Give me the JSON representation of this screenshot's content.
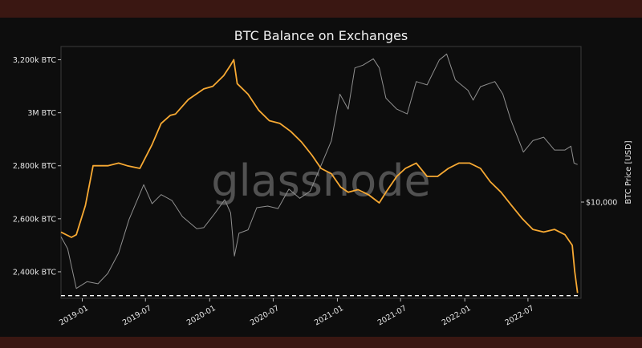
{
  "chart_data": {
    "type": "line",
    "title": "BTC Balance on Exchanges",
    "watermark": "glassnode",
    "ylabel_right": "BTC Price [USD]",
    "y_left": {
      "range": [
        2300000,
        3250000
      ],
      "ticks": [
        {
          "value": 2400000,
          "label": "2,400k BTC"
        },
        {
          "value": 2600000,
          "label": "2,600k BTC"
        },
        {
          "value": 2800000,
          "label": "2,800k BTC"
        },
        {
          "value": 3000000,
          "label": "3M BTC"
        },
        {
          "value": 3200000,
          "label": "3,200k BTC"
        }
      ]
    },
    "y_right": {
      "scale": "log",
      "ticks": [
        {
          "value": 10000,
          "label": "$10,000"
        }
      ]
    },
    "x_axis": {
      "range": [
        "2018-11-01",
        "2022-11-30"
      ],
      "ticks": [
        "2019-01",
        "2019-07",
        "2020-01",
        "2020-07",
        "2021-01",
        "2021-07",
        "2022-01",
        "2022-07"
      ]
    },
    "reference_line": {
      "value": 2310000,
      "style": "dashed",
      "color": "#ffffff"
    },
    "series": [
      {
        "axis": "left",
        "color": "#f7a933",
        "x": [
          "2018-11-01",
          "2018-12-01",
          "2018-12-15",
          "2019-01-10",
          "2019-02-01",
          "2019-03-15",
          "2019-04-15",
          "2019-05-10",
          "2019-06-15",
          "2019-07-20",
          "2019-08-15",
          "2019-09-10",
          "2019-09-25",
          "2019-11-01",
          "2019-12-15",
          "2020-01-10",
          "2020-02-10",
          "2020-03-01",
          "2020-03-10",
          "2020-03-20",
          "2020-04-20",
          "2020-05-20",
          "2020-06-20",
          "2020-07-20",
          "2020-08-20",
          "2020-09-20",
          "2020-10-20",
          "2020-11-15",
          "2020-12-15",
          "2021-01-10",
          "2021-02-01",
          "2021-03-01",
          "2021-04-01",
          "2021-05-01",
          "2021-05-20",
          "2021-06-20",
          "2021-07-15",
          "2021-08-15",
          "2021-09-15",
          "2021-10-15",
          "2021-11-15",
          "2021-12-15",
          "2022-01-15",
          "2022-02-15",
          "2022-03-15",
          "2022-04-15",
          "2022-05-15",
          "2022-06-15",
          "2022-07-15",
          "2022-08-15",
          "2022-09-15",
          "2022-10-15",
          "2022-11-05",
          "2022-11-12",
          "2022-11-20"
        ],
        "values": [
          2550000,
          2530000,
          2540000,
          2650000,
          2800000,
          2800000,
          2810000,
          2800000,
          2790000,
          2880000,
          2960000,
          2990000,
          2995000,
          3050000,
          3090000,
          3100000,
          3140000,
          3180000,
          3200000,
          3110000,
          3070000,
          3010000,
          2970000,
          2960000,
          2930000,
          2890000,
          2840000,
          2790000,
          2770000,
          2720000,
          2700000,
          2710000,
          2690000,
          2660000,
          2700000,
          2760000,
          2790000,
          2810000,
          2760000,
          2760000,
          2790000,
          2810000,
          2810000,
          2790000,
          2740000,
          2700000,
          2650000,
          2600000,
          2560000,
          2550000,
          2560000,
          2540000,
          2500000,
          2400000,
          2320000
        ]
      },
      {
        "axis": "right",
        "color": "#8f8f8f",
        "x": [
          "2018-11-01",
          "2018-11-20",
          "2018-12-15",
          "2019-01-15",
          "2019-02-15",
          "2019-03-15",
          "2019-04-15",
          "2019-05-15",
          "2019-06-26",
          "2019-07-20",
          "2019-08-15",
          "2019-09-15",
          "2019-10-15",
          "2019-11-25",
          "2019-12-15",
          "2020-01-15",
          "2020-02-13",
          "2020-03-01",
          "2020-03-12",
          "2020-03-25",
          "2020-04-20",
          "2020-05-15",
          "2020-06-15",
          "2020-07-15",
          "2020-08-15",
          "2020-09-15",
          "2020-10-15",
          "2020-11-15",
          "2020-12-15",
          "2021-01-08",
          "2021-02-01",
          "2021-02-20",
          "2021-03-15",
          "2021-04-14",
          "2021-05-01",
          "2021-05-20",
          "2021-06-20",
          "2021-07-20",
          "2021-08-15",
          "2021-09-15",
          "2021-10-20",
          "2021-11-10",
          "2021-12-05",
          "2022-01-10",
          "2022-01-25",
          "2022-02-15",
          "2022-03-28",
          "2022-04-20",
          "2022-05-12",
          "2022-06-18",
          "2022-07-15",
          "2022-08-15",
          "2022-09-15",
          "2022-10-15",
          "2022-11-01",
          "2022-11-10",
          "2022-11-20"
        ],
        "values": [
          6400,
          5500,
          3300,
          3600,
          3500,
          4000,
          5200,
          8000,
          12500,
          9800,
          11000,
          10200,
          8300,
          7100,
          7200,
          8600,
          10300,
          8700,
          5000,
          6700,
          7000,
          9300,
          9500,
          9200,
          11800,
          10500,
          11500,
          16000,
          22000,
          40000,
          33000,
          56000,
          58000,
          63000,
          56000,
          38000,
          33000,
          31000,
          47000,
          45000,
          62000,
          67000,
          48000,
          42000,
          37000,
          44000,
          47000,
          40000,
          29000,
          19000,
          22000,
          23000,
          19500,
          19500,
          20500,
          16500,
          16200
        ]
      }
    ]
  }
}
